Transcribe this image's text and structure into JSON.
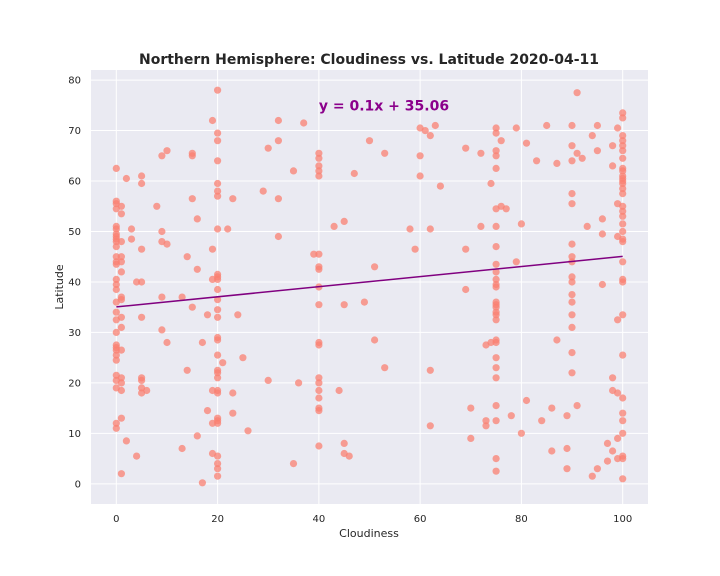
{
  "chart_data": {
    "type": "scatter",
    "title": "Northern Hemisphere: Cloudiness vs. Latitude 2020-04-11",
    "xlabel": "Cloudiness",
    "ylabel": "Latitude",
    "xlim": [
      -5,
      105
    ],
    "ylim": [
      -4,
      82
    ],
    "xticks": [
      0,
      20,
      40,
      60,
      80,
      100
    ],
    "yticks": [
      0,
      10,
      20,
      30,
      40,
      50,
      60,
      70,
      80
    ],
    "grid": true,
    "colors": {
      "points": "#fa8072",
      "regression": "#800080",
      "annotation": "#8b008b",
      "background": "#eaeaf2",
      "grid": "#ffffff"
    },
    "regression": {
      "slope": 0.1,
      "intercept": 35.06,
      "equation": "y = 0.1x + 35.06",
      "annotation_at": [
        40,
        75
      ]
    },
    "points": [
      [
        0,
        62.5
      ],
      [
        0,
        56
      ],
      [
        0,
        55.5
      ],
      [
        0,
        54.5
      ],
      [
        0,
        51
      ],
      [
        0,
        50.5
      ],
      [
        0,
        49.5
      ],
      [
        0,
        49
      ],
      [
        0,
        48.5
      ],
      [
        0,
        48
      ],
      [
        0,
        47
      ],
      [
        0,
        45
      ],
      [
        0,
        44
      ],
      [
        0,
        43.5
      ],
      [
        0,
        40.5
      ],
      [
        0,
        39.5
      ],
      [
        0,
        38.5
      ],
      [
        0,
        36
      ],
      [
        0,
        34
      ],
      [
        0,
        32.5
      ],
      [
        0,
        30
      ],
      [
        0,
        27.5
      ],
      [
        0,
        27
      ],
      [
        0,
        26.5
      ],
      [
        0,
        25.5
      ],
      [
        0,
        24.5
      ],
      [
        0,
        21.5
      ],
      [
        0,
        20.5
      ],
      [
        0,
        19
      ],
      [
        0,
        12
      ],
      [
        0,
        11
      ],
      [
        1,
        55
      ],
      [
        1,
        53.5
      ],
      [
        1,
        48
      ],
      [
        1,
        45
      ],
      [
        1,
        44
      ],
      [
        1,
        42
      ],
      [
        1,
        37
      ],
      [
        1,
        36.5
      ],
      [
        1,
        33
      ],
      [
        1,
        31
      ],
      [
        1,
        26.5
      ],
      [
        1,
        21
      ],
      [
        1,
        20
      ],
      [
        1,
        18.5
      ],
      [
        1,
        13
      ],
      [
        1,
        2
      ],
      [
        2,
        60.5
      ],
      [
        2,
        8.5
      ],
      [
        3,
        50.5
      ],
      [
        3,
        48.5
      ],
      [
        4,
        40
      ],
      [
        4,
        5.5
      ],
      [
        5,
        61
      ],
      [
        5,
        59.5
      ],
      [
        5,
        46.5
      ],
      [
        5,
        40
      ],
      [
        5,
        33
      ],
      [
        5,
        21
      ],
      [
        5,
        20.5
      ],
      [
        5,
        19
      ],
      [
        5,
        18
      ],
      [
        6,
        18.5
      ],
      [
        8,
        55
      ],
      [
        9,
        65
      ],
      [
        9,
        50
      ],
      [
        9,
        48
      ],
      [
        9,
        37
      ],
      [
        9,
        30.5
      ],
      [
        10,
        66
      ],
      [
        10,
        47.5
      ],
      [
        10,
        28
      ],
      [
        13,
        37
      ],
      [
        13,
        7
      ],
      [
        14,
        45
      ],
      [
        14,
        22.5
      ],
      [
        15,
        65.5
      ],
      [
        15,
        65
      ],
      [
        15,
        56.5
      ],
      [
        15,
        35
      ],
      [
        16,
        52.5
      ],
      [
        16,
        42.5
      ],
      [
        16,
        9.5
      ],
      [
        17,
        28
      ],
      [
        17,
        0.2
      ],
      [
        18,
        33.5
      ],
      [
        18,
        14.5
      ],
      [
        19,
        72
      ],
      [
        19,
        46.5
      ],
      [
        19,
        40.5
      ],
      [
        19,
        18.5
      ],
      [
        19,
        12
      ],
      [
        19,
        6
      ],
      [
        20,
        78
      ],
      [
        20,
        69.5
      ],
      [
        20,
        68
      ],
      [
        20,
        64
      ],
      [
        20,
        59.5
      ],
      [
        20,
        58
      ],
      [
        20,
        57
      ],
      [
        20,
        50.5
      ],
      [
        20,
        41.5
      ],
      [
        20,
        41
      ],
      [
        20,
        40.5
      ],
      [
        20,
        38.5
      ],
      [
        20,
        36.5
      ],
      [
        20,
        34.5
      ],
      [
        20,
        33
      ],
      [
        20,
        29
      ],
      [
        20,
        28.5
      ],
      [
        20,
        25.5
      ],
      [
        20,
        22.5
      ],
      [
        20,
        22
      ],
      [
        20,
        21
      ],
      [
        20,
        18.5
      ],
      [
        20,
        18
      ],
      [
        20,
        13
      ],
      [
        20,
        12.5
      ],
      [
        20,
        12
      ],
      [
        20,
        5.5
      ],
      [
        20,
        4
      ],
      [
        20,
        3
      ],
      [
        20,
        1.5
      ],
      [
        21,
        24
      ],
      [
        22,
        50.5
      ],
      [
        23,
        56.5
      ],
      [
        23,
        18
      ],
      [
        23,
        14
      ],
      [
        24,
        33.5
      ],
      [
        25,
        25
      ],
      [
        26,
        10.5
      ],
      [
        29,
        58
      ],
      [
        30,
        66.5
      ],
      [
        30,
        20.5
      ],
      [
        32,
        72
      ],
      [
        32,
        68
      ],
      [
        32,
        56.5
      ],
      [
        32,
        49
      ],
      [
        35,
        62
      ],
      [
        35,
        4
      ],
      [
        36,
        20
      ],
      [
        37,
        71.5
      ],
      [
        39,
        45.5
      ],
      [
        40,
        65.5
      ],
      [
        40,
        64.5
      ],
      [
        40,
        63
      ],
      [
        40,
        62
      ],
      [
        40,
        61
      ],
      [
        40,
        45.5
      ],
      [
        40,
        43
      ],
      [
        40,
        42.5
      ],
      [
        40,
        39
      ],
      [
        40,
        35.5
      ],
      [
        40,
        28
      ],
      [
        40,
        27.5
      ],
      [
        40,
        21
      ],
      [
        40,
        20
      ],
      [
        40,
        18.5
      ],
      [
        40,
        17
      ],
      [
        40,
        15
      ],
      [
        40,
        14.5
      ],
      [
        40,
        7.5
      ],
      [
        43,
        51
      ],
      [
        44,
        18.5
      ],
      [
        45,
        52
      ],
      [
        45,
        35.5
      ],
      [
        45,
        8
      ],
      [
        45,
        6
      ],
      [
        46,
        5.5
      ],
      [
        47,
        61.5
      ],
      [
        49,
        36
      ],
      [
        50,
        68
      ],
      [
        51,
        28.5
      ],
      [
        51,
        43
      ],
      [
        53,
        65.5
      ],
      [
        53,
        23
      ],
      [
        58,
        50.5
      ],
      [
        59,
        46.5
      ],
      [
        60,
        65
      ],
      [
        60,
        61
      ],
      [
        60,
        70.5
      ],
      [
        61,
        70
      ],
      [
        62,
        69
      ],
      [
        62,
        50.5
      ],
      [
        62,
        22.5
      ],
      [
        62,
        11.5
      ],
      [
        63,
        71
      ],
      [
        64,
        59
      ],
      [
        69,
        66.5
      ],
      [
        69,
        46.5
      ],
      [
        69,
        38.5
      ],
      [
        70,
        15
      ],
      [
        70,
        9
      ],
      [
        72,
        65.5
      ],
      [
        72,
        51
      ],
      [
        73,
        12.5
      ],
      [
        73,
        27.5
      ],
      [
        73,
        11.5
      ],
      [
        74,
        59.5
      ],
      [
        74,
        28
      ],
      [
        75,
        70.5
      ],
      [
        75,
        69.5
      ],
      [
        75,
        66
      ],
      [
        75,
        65
      ],
      [
        75,
        62.5
      ],
      [
        75,
        54.5
      ],
      [
        75,
        51
      ],
      [
        75,
        47
      ],
      [
        75,
        43.5
      ],
      [
        75,
        42
      ],
      [
        75,
        40.5
      ],
      [
        75,
        39.5
      ],
      [
        75,
        39
      ],
      [
        75,
        36
      ],
      [
        75,
        35.5
      ],
      [
        75,
        35
      ],
      [
        75,
        34
      ],
      [
        75,
        33.5
      ],
      [
        75,
        32.5
      ],
      [
        75,
        28.5
      ],
      [
        75,
        28
      ],
      [
        75,
        25
      ],
      [
        75,
        23
      ],
      [
        75,
        21
      ],
      [
        75,
        15.5
      ],
      [
        75,
        12.5
      ],
      [
        75,
        5
      ],
      [
        75,
        2.5
      ],
      [
        76,
        68
      ],
      [
        76,
        55
      ],
      [
        77,
        54.5
      ],
      [
        78,
        13.5
      ],
      [
        79,
        44
      ],
      [
        79,
        70.5
      ],
      [
        80,
        51.5
      ],
      [
        80,
        10
      ],
      [
        81,
        67.5
      ],
      [
        81,
        16.5
      ],
      [
        83,
        64
      ],
      [
        84,
        12.5
      ],
      [
        85,
        71
      ],
      [
        86,
        15
      ],
      [
        86,
        6.5
      ],
      [
        87,
        63.5
      ],
      [
        87,
        28.5
      ],
      [
        89,
        13.5
      ],
      [
        89,
        3
      ],
      [
        89,
        7
      ],
      [
        90,
        71
      ],
      [
        90,
        67
      ],
      [
        90,
        64
      ],
      [
        90,
        57.5
      ],
      [
        90,
        55.5
      ],
      [
        90,
        47.5
      ],
      [
        90,
        45
      ],
      [
        90,
        44
      ],
      [
        90,
        41
      ],
      [
        90,
        40
      ],
      [
        90,
        37.5
      ],
      [
        90,
        36
      ],
      [
        90,
        33.5
      ],
      [
        90,
        31
      ],
      [
        90,
        26
      ],
      [
        90,
        22
      ],
      [
        91,
        77.5
      ],
      [
        91,
        65.5
      ],
      [
        91,
        15.5
      ],
      [
        92,
        64.5
      ],
      [
        93,
        51
      ],
      [
        94,
        69
      ],
      [
        94,
        1.5
      ],
      [
        95,
        71
      ],
      [
        95,
        3
      ],
      [
        95,
        66
      ],
      [
        96,
        52.5
      ],
      [
        96,
        49.5
      ],
      [
        96,
        39.5
      ],
      [
        97,
        8
      ],
      [
        97,
        4.5
      ],
      [
        98,
        67
      ],
      [
        98,
        63
      ],
      [
        98,
        21
      ],
      [
        98,
        18.5
      ],
      [
        98,
        6.5
      ],
      [
        99,
        70.5
      ],
      [
        99,
        55.5
      ],
      [
        99,
        49
      ],
      [
        99,
        32.5
      ],
      [
        99,
        18
      ],
      [
        99,
        9
      ],
      [
        99,
        5
      ],
      [
        100,
        73.5
      ],
      [
        100,
        72.5
      ],
      [
        100,
        69
      ],
      [
        100,
        68
      ],
      [
        100,
        67
      ],
      [
        100,
        66
      ],
      [
        100,
        64.5
      ],
      [
        100,
        62.5
      ],
      [
        100,
        62
      ],
      [
        100,
        61
      ],
      [
        100,
        60.5
      ],
      [
        100,
        60
      ],
      [
        100,
        59.5
      ],
      [
        100,
        58.5
      ],
      [
        100,
        57.5
      ],
      [
        100,
        55
      ],
      [
        100,
        54
      ],
      [
        100,
        53
      ],
      [
        100,
        51.5
      ],
      [
        100,
        50
      ],
      [
        100,
        48.5
      ],
      [
        100,
        48
      ],
      [
        100,
        44
      ],
      [
        100,
        40.5
      ],
      [
        100,
        40
      ],
      [
        100,
        33.5
      ],
      [
        100,
        25.5
      ],
      [
        100,
        17
      ],
      [
        100,
        14
      ],
      [
        100,
        12.5
      ],
      [
        100,
        10
      ],
      [
        100,
        5.5
      ],
      [
        100,
        5
      ],
      [
        100,
        1
      ]
    ]
  }
}
